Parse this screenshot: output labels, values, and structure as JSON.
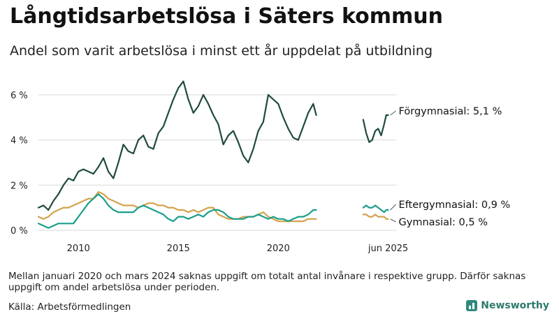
{
  "header": {
    "title": "Långtidsarbetslösa i Säters kommun",
    "subtitle": "Andel som varit arbetslösa i minst ett år uppdelat på utbildning"
  },
  "footer": {
    "note": "Mellan januari 2020 och mars 2024 saknas uppgift om totalt antal invånare i respektive grupp. Därför saknas uppgift om andel arbetslösa under perioden.",
    "source": "Källa: Arbetsförmedlingen",
    "brand": "Newsworthy"
  },
  "colors": {
    "forgymnasial": "#1f4a40",
    "eftergymnasial": "#1a9e8a",
    "gymnasial": "#d4a24c",
    "grid": "#d9d9d9",
    "brand": "#2e8b7a"
  },
  "chart_data": {
    "type": "line",
    "title": "",
    "xlabel": "",
    "ylabel": "",
    "y_tick_labels": [
      "0 %",
      "2 %",
      "4 %",
      "6 %"
    ],
    "y_ticks": [
      0,
      2,
      4,
      6
    ],
    "x_tick_labels": [
      "2010",
      "2015",
      "2020",
      "jun 2025"
    ],
    "x_ticks": [
      2010,
      2015,
      2020,
      2025.5
    ],
    "xlim": [
      2008.0,
      2025.9
    ],
    "ylim": [
      0,
      6.8
    ],
    "grid": "horizontal",
    "series": [
      {
        "name": "Förgymnasial",
        "end_label": "Förgymnasial: 5,1 %",
        "color_key": "forgymnasial",
        "segments": [
          [
            [
              2008.0,
              1.0
            ],
            [
              2008.25,
              1.1
            ],
            [
              2008.5,
              0.9
            ],
            [
              2008.75,
              1.3
            ],
            [
              2009.0,
              1.6
            ],
            [
              2009.25,
              2.0
            ],
            [
              2009.5,
              2.3
            ],
            [
              2009.75,
              2.2
            ],
            [
              2010.0,
              2.6
            ],
            [
              2010.25,
              2.7
            ],
            [
              2010.5,
              2.6
            ],
            [
              2010.75,
              2.5
            ],
            [
              2011.0,
              2.8
            ],
            [
              2011.25,
              3.2
            ],
            [
              2011.5,
              2.6
            ],
            [
              2011.75,
              2.3
            ],
            [
              2012.0,
              3.0
            ],
            [
              2012.25,
              3.8
            ],
            [
              2012.5,
              3.5
            ],
            [
              2012.75,
              3.4
            ],
            [
              2013.0,
              4.0
            ],
            [
              2013.25,
              4.2
            ],
            [
              2013.5,
              3.7
            ],
            [
              2013.75,
              3.6
            ],
            [
              2014.0,
              4.3
            ],
            [
              2014.25,
              4.6
            ],
            [
              2014.5,
              5.2
            ],
            [
              2014.75,
              5.8
            ],
            [
              2015.0,
              6.3
            ],
            [
              2015.25,
              6.6
            ],
            [
              2015.5,
              5.8
            ],
            [
              2015.75,
              5.2
            ],
            [
              2016.0,
              5.5
            ],
            [
              2016.25,
              6.0
            ],
            [
              2016.5,
              5.6
            ],
            [
              2016.75,
              5.1
            ],
            [
              2017.0,
              4.7
            ],
            [
              2017.25,
              3.8
            ],
            [
              2017.5,
              4.2
            ],
            [
              2017.75,
              4.4
            ],
            [
              2018.0,
              3.9
            ],
            [
              2018.25,
              3.3
            ],
            [
              2018.5,
              3.0
            ],
            [
              2018.75,
              3.6
            ],
            [
              2019.0,
              4.4
            ],
            [
              2019.25,
              4.8
            ],
            [
              2019.5,
              6.0
            ],
            [
              2019.75,
              5.8
            ],
            [
              2020.0,
              5.6
            ],
            [
              2020.25,
              5.0
            ],
            [
              2020.5,
              4.5
            ],
            [
              2020.75,
              4.1
            ],
            [
              2021.0,
              4.0
            ],
            [
              2021.25,
              4.6
            ],
            [
              2021.5,
              5.2
            ],
            [
              2021.75,
              5.6
            ],
            [
              2021.9,
              5.1
            ]
          ],
          [
            [
              2024.25,
              4.9
            ],
            [
              2024.4,
              4.3
            ],
            [
              2024.55,
              3.9
            ],
            [
              2024.7,
              4.0
            ],
            [
              2024.85,
              4.4
            ],
            [
              2025.0,
              4.5
            ],
            [
              2025.15,
              4.2
            ],
            [
              2025.3,
              4.7
            ],
            [
              2025.4,
              5.1
            ],
            [
              2025.5,
              5.1
            ]
          ]
        ]
      },
      {
        "name": "Eftergymnasial",
        "end_label": "Eftergymnasial: 0,9 %",
        "color_key": "eftergymnasial",
        "segments": [
          [
            [
              2008.0,
              0.3
            ],
            [
              2008.25,
              0.2
            ],
            [
              2008.5,
              0.1
            ],
            [
              2008.75,
              0.2
            ],
            [
              2009.0,
              0.3
            ],
            [
              2009.25,
              0.3
            ],
            [
              2009.5,
              0.3
            ],
            [
              2009.75,
              0.3
            ],
            [
              2010.0,
              0.6
            ],
            [
              2010.25,
              0.9
            ],
            [
              2010.5,
              1.2
            ],
            [
              2010.75,
              1.4
            ],
            [
              2011.0,
              1.6
            ],
            [
              2011.25,
              1.4
            ],
            [
              2011.5,
              1.1
            ],
            [
              2011.75,
              0.9
            ],
            [
              2012.0,
              0.8
            ],
            [
              2012.25,
              0.8
            ],
            [
              2012.5,
              0.8
            ],
            [
              2012.75,
              0.8
            ],
            [
              2013.0,
              1.0
            ],
            [
              2013.25,
              1.1
            ],
            [
              2013.5,
              1.0
            ],
            [
              2013.75,
              0.9
            ],
            [
              2014.0,
              0.8
            ],
            [
              2014.25,
              0.7
            ],
            [
              2014.5,
              0.5
            ],
            [
              2014.75,
              0.4
            ],
            [
              2015.0,
              0.6
            ],
            [
              2015.25,
              0.6
            ],
            [
              2015.5,
              0.5
            ],
            [
              2015.75,
              0.6
            ],
            [
              2016.0,
              0.7
            ],
            [
              2016.25,
              0.6
            ],
            [
              2016.5,
              0.8
            ],
            [
              2016.75,
              0.9
            ],
            [
              2017.0,
              0.9
            ],
            [
              2017.25,
              0.8
            ],
            [
              2017.5,
              0.6
            ],
            [
              2017.75,
              0.5
            ],
            [
              2018.0,
              0.5
            ],
            [
              2018.25,
              0.5
            ],
            [
              2018.5,
              0.6
            ],
            [
              2018.75,
              0.6
            ],
            [
              2019.0,
              0.7
            ],
            [
              2019.25,
              0.6
            ],
            [
              2019.5,
              0.5
            ],
            [
              2019.75,
              0.6
            ],
            [
              2020.0,
              0.5
            ],
            [
              2020.25,
              0.5
            ],
            [
              2020.5,
              0.4
            ],
            [
              2020.75,
              0.5
            ],
            [
              2021.0,
              0.6
            ],
            [
              2021.25,
              0.6
            ],
            [
              2021.5,
              0.7
            ],
            [
              2021.75,
              0.9
            ],
            [
              2021.9,
              0.9
            ]
          ],
          [
            [
              2024.25,
              1.0
            ],
            [
              2024.4,
              1.1
            ],
            [
              2024.55,
              1.0
            ],
            [
              2024.7,
              1.0
            ],
            [
              2024.85,
              1.1
            ],
            [
              2025.0,
              1.0
            ],
            [
              2025.15,
              0.9
            ],
            [
              2025.3,
              0.8
            ],
            [
              2025.4,
              0.9
            ],
            [
              2025.5,
              0.9
            ]
          ]
        ]
      },
      {
        "name": "Gymnasial",
        "end_label": "Gymnasial: 0,5 %",
        "color_key": "gymnasial",
        "segments": [
          [
            [
              2008.0,
              0.6
            ],
            [
              2008.25,
              0.5
            ],
            [
              2008.5,
              0.6
            ],
            [
              2008.75,
              0.8
            ],
            [
              2009.0,
              0.9
            ],
            [
              2009.25,
              1.0
            ],
            [
              2009.5,
              1.0
            ],
            [
              2009.75,
              1.1
            ],
            [
              2010.0,
              1.2
            ],
            [
              2010.25,
              1.3
            ],
            [
              2010.5,
              1.4
            ],
            [
              2010.75,
              1.4
            ],
            [
              2011.0,
              1.7
            ],
            [
              2011.25,
              1.6
            ],
            [
              2011.5,
              1.4
            ],
            [
              2011.75,
              1.3
            ],
            [
              2012.0,
              1.2
            ],
            [
              2012.25,
              1.1
            ],
            [
              2012.5,
              1.1
            ],
            [
              2012.75,
              1.1
            ],
            [
              2013.0,
              1.0
            ],
            [
              2013.25,
              1.1
            ],
            [
              2013.5,
              1.2
            ],
            [
              2013.75,
              1.2
            ],
            [
              2014.0,
              1.1
            ],
            [
              2014.25,
              1.1
            ],
            [
              2014.5,
              1.0
            ],
            [
              2014.75,
              1.0
            ],
            [
              2015.0,
              0.9
            ],
            [
              2015.25,
              0.9
            ],
            [
              2015.5,
              0.8
            ],
            [
              2015.75,
              0.9
            ],
            [
              2016.0,
              0.8
            ],
            [
              2016.25,
              0.9
            ],
            [
              2016.5,
              1.0
            ],
            [
              2016.75,
              1.0
            ],
            [
              2017.0,
              0.7
            ],
            [
              2017.25,
              0.6
            ],
            [
              2017.5,
              0.5
            ],
            [
              2017.75,
              0.5
            ],
            [
              2018.0,
              0.5
            ],
            [
              2018.25,
              0.6
            ],
            [
              2018.5,
              0.6
            ],
            [
              2018.75,
              0.6
            ],
            [
              2019.0,
              0.7
            ],
            [
              2019.25,
              0.8
            ],
            [
              2019.5,
              0.6
            ],
            [
              2019.75,
              0.5
            ],
            [
              2020.0,
              0.4
            ],
            [
              2020.25,
              0.4
            ],
            [
              2020.5,
              0.4
            ],
            [
              2020.75,
              0.4
            ],
            [
              2021.0,
              0.4
            ],
            [
              2021.25,
              0.4
            ],
            [
              2021.5,
              0.5
            ],
            [
              2021.75,
              0.5
            ],
            [
              2021.9,
              0.5
            ]
          ],
          [
            [
              2024.25,
              0.7
            ],
            [
              2024.4,
              0.7
            ],
            [
              2024.55,
              0.6
            ],
            [
              2024.7,
              0.6
            ],
            [
              2024.85,
              0.7
            ],
            [
              2025.0,
              0.6
            ],
            [
              2025.15,
              0.6
            ],
            [
              2025.3,
              0.6
            ],
            [
              2025.4,
              0.5
            ],
            [
              2025.5,
              0.5
            ]
          ]
        ]
      }
    ]
  }
}
